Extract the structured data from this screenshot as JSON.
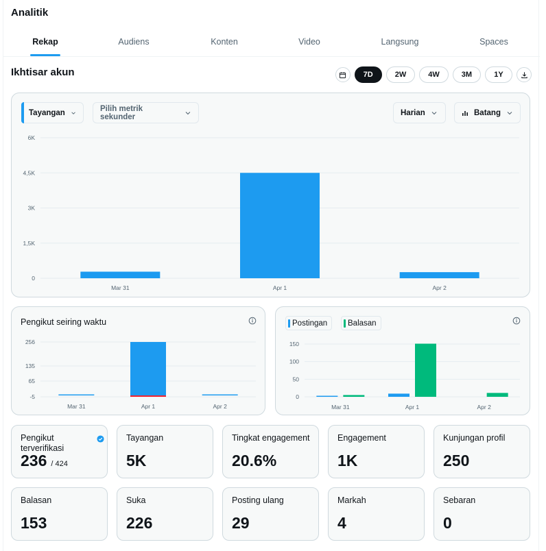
{
  "app": {
    "title": "Analitik"
  },
  "tabs": [
    {
      "label": "Rekap",
      "active": true
    },
    {
      "label": "Audiens",
      "active": false
    },
    {
      "label": "Konten",
      "active": false
    },
    {
      "label": "Video",
      "active": false
    },
    {
      "label": "Langsung",
      "active": false
    },
    {
      "label": "Spaces",
      "active": false
    }
  ],
  "overview": {
    "title": "Ikhtisar akun",
    "ranges": [
      "7D",
      "2W",
      "4W",
      "3M",
      "1Y"
    ],
    "active_range": "7D"
  },
  "main_chart": {
    "metric_primary": "Tayangan",
    "metric_secondary": "Pilih metrik sekunder",
    "interval": "Harian",
    "chart_style": "Batang"
  },
  "followers_card": {
    "title": "Pengikut seiring waktu"
  },
  "posts_card": {
    "legend": [
      "Postingan",
      "Balasan"
    ]
  },
  "colors": {
    "primary": "#1d9bf0",
    "secondary": "#00ba7c",
    "negative": "#f4212e"
  },
  "chart_data": [
    {
      "type": "bar",
      "title": "Tayangan",
      "categories": [
        "Mar 31",
        "Apr 1",
        "Apr 2"
      ],
      "values": [
        280,
        4500,
        260
      ],
      "yticks": [
        "0",
        "1,5K",
        "3K",
        "4,5K",
        "6K"
      ],
      "ylim": [
        0,
        6000
      ]
    },
    {
      "type": "bar",
      "title": "Pengikut seiring waktu",
      "categories": [
        "Mar 31",
        "Apr 1",
        "Apr 2"
      ],
      "values": [
        0,
        256,
        2
      ],
      "negative_values": [
        0,
        -5,
        0
      ],
      "yticks": [
        "-5",
        "65",
        "135",
        "256"
      ],
      "ylim": [
        -5,
        256
      ]
    },
    {
      "type": "bar",
      "title": "Postingan / Balasan",
      "categories": [
        "Mar 31",
        "Apr 1",
        "Apr 2"
      ],
      "series": [
        {
          "name": "Postingan",
          "values": [
            1,
            9,
            0
          ]
        },
        {
          "name": "Balasan",
          "values": [
            5,
            151,
            11
          ]
        }
      ],
      "yticks": [
        "0",
        "50",
        "100",
        "150"
      ],
      "ylim": [
        0,
        160
      ]
    }
  ],
  "stats_row1": [
    {
      "label": "Pengikut terverifikasi",
      "value": "236",
      "sub": "/ 424",
      "verified": true
    },
    {
      "label": "Tayangan",
      "value": "5K"
    },
    {
      "label": "Tingkat engagement",
      "value": "20.6%"
    },
    {
      "label": "Engagement",
      "value": "1K"
    },
    {
      "label": "Kunjungan profil",
      "value": "250"
    }
  ],
  "stats_row2": [
    {
      "label": "Balasan",
      "value": "153"
    },
    {
      "label": "Suka",
      "value": "226"
    },
    {
      "label": "Posting ulang",
      "value": "29"
    },
    {
      "label": "Markah",
      "value": "4"
    },
    {
      "label": "Sebaran",
      "value": "0"
    }
  ]
}
